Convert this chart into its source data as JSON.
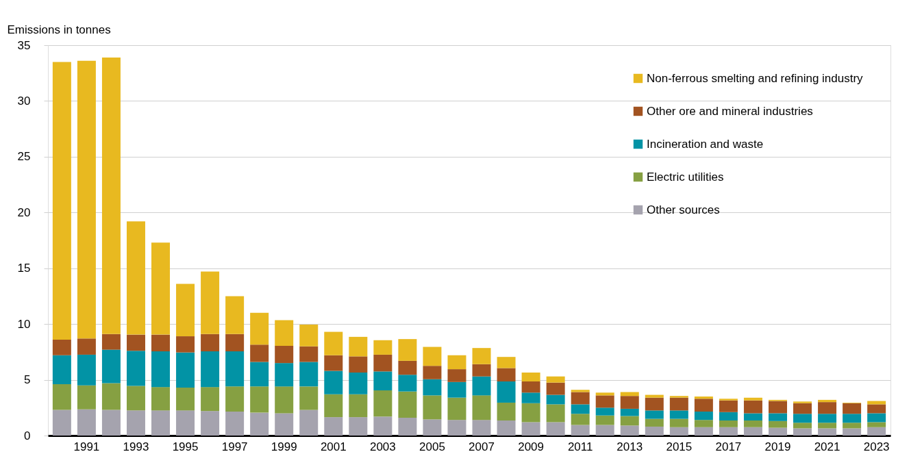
{
  "chart_data": {
    "type": "bar",
    "stacked": true,
    "ylabel": "Emissions in tonnes",
    "categories": [
      null,
      "1991",
      null,
      "1993",
      null,
      "1995",
      null,
      "1997",
      null,
      "1999",
      null,
      "2001",
      null,
      "2003",
      null,
      "2005",
      null,
      "2007",
      null,
      "2009",
      null,
      "2011",
      null,
      "2013",
      null,
      "2015",
      null,
      "2017",
      null,
      "2019",
      null,
      "2021",
      null,
      "2023"
    ],
    "series": [
      {
        "name": "Other sources",
        "color": "#a5a3ae",
        "values": [
          2.3,
          2.35,
          2.3,
          2.25,
          2.25,
          2.25,
          2.2,
          2.15,
          2.05,
          2.0,
          2.3,
          1.65,
          1.65,
          1.7,
          1.6,
          1.45,
          1.4,
          1.4,
          1.35,
          1.2,
          1.2,
          0.95,
          0.95,
          0.9,
          0.8,
          0.75,
          0.75,
          0.75,
          0.75,
          0.7,
          0.65,
          0.65,
          0.65,
          0.75
        ]
      },
      {
        "name": "Electric utilities",
        "color": "#86a042",
        "values": [
          2.3,
          2.15,
          2.4,
          2.2,
          2.1,
          2.05,
          2.15,
          2.25,
          2.35,
          2.4,
          2.1,
          2.05,
          2.05,
          2.35,
          2.35,
          2.15,
          2.0,
          2.2,
          1.6,
          1.7,
          1.6,
          1.0,
          0.85,
          0.85,
          0.7,
          0.75,
          0.65,
          0.6,
          0.6,
          0.6,
          0.5,
          0.5,
          0.5,
          0.45
        ]
      },
      {
        "name": "Incineration and waste",
        "color": "#0293a5",
        "values": [
          2.6,
          2.75,
          3.0,
          3.15,
          3.2,
          3.15,
          3.2,
          3.15,
          2.2,
          2.1,
          2.2,
          2.1,
          1.95,
          1.7,
          1.5,
          1.45,
          1.4,
          1.7,
          1.9,
          0.95,
          0.85,
          0.85,
          0.7,
          0.65,
          0.75,
          0.75,
          0.75,
          0.75,
          0.65,
          0.7,
          0.8,
          0.8,
          0.8,
          0.8
        ]
      },
      {
        "name": "Other ore and mineral industries",
        "color": "#a25321",
        "values": [
          1.4,
          1.45,
          1.4,
          1.45,
          1.5,
          1.45,
          1.55,
          1.55,
          1.55,
          1.55,
          1.4,
          1.4,
          1.45,
          1.5,
          1.25,
          1.2,
          1.15,
          1.1,
          1.2,
          1.0,
          1.1,
          1.1,
          1.1,
          1.15,
          1.15,
          1.15,
          1.15,
          1.05,
          1.15,
          1.1,
          0.95,
          1.05,
          0.95,
          0.8
        ]
      },
      {
        "name": "Non-ferrous smelting and refining industry",
        "color": "#e8b920",
        "values": [
          24.9,
          24.9,
          24.8,
          10.15,
          8.25,
          4.7,
          5.6,
          3.4,
          2.85,
          2.3,
          1.95,
          2.1,
          1.75,
          1.3,
          1.95,
          1.7,
          1.25,
          1.45,
          1.0,
          0.8,
          0.55,
          0.2,
          0.25,
          0.35,
          0.25,
          0.15,
          0.2,
          0.15,
          0.25,
          0.1,
          0.15,
          0.2,
          0.05,
          0.3
        ]
      }
    ],
    "ylim": [
      0,
      35
    ],
    "yticks": [
      0,
      5,
      10,
      15,
      20,
      25,
      30,
      35
    ],
    "grid": "y",
    "legend": "top right"
  }
}
